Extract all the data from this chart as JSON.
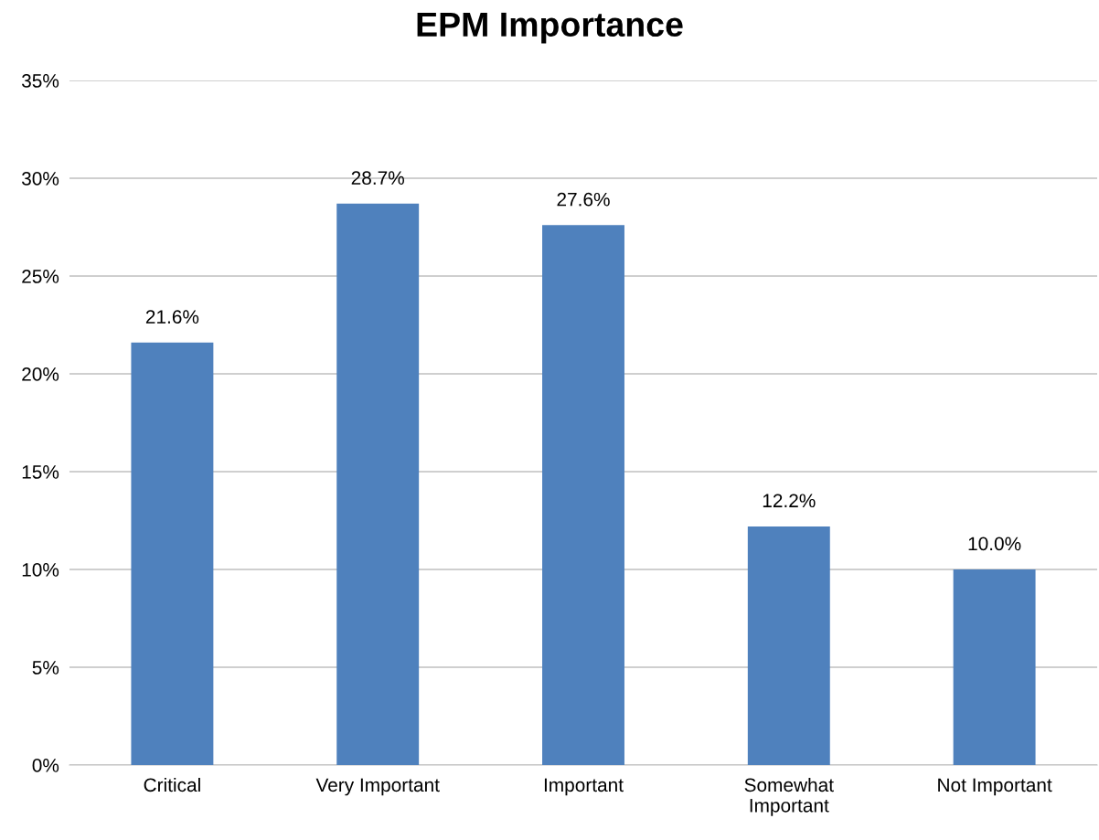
{
  "chart_data": {
    "type": "bar",
    "title": "EPM Importance",
    "categories": [
      "Critical",
      "Very Important",
      "Important",
      "Somewhat\nImportant",
      "Not Important"
    ],
    "values": [
      21.6,
      28.7,
      27.6,
      12.2,
      10.0
    ],
    "value_labels": [
      "21.6%",
      "28.7%",
      "27.6%",
      "12.2%",
      "10.0%"
    ],
    "color": "#4f81bd",
    "ylim": [
      0,
      35
    ],
    "yticks": [
      {
        "value": 0,
        "label": "0%"
      },
      {
        "value": 5,
        "label": "5%"
      },
      {
        "value": 10,
        "label": "10%"
      },
      {
        "value": 15,
        "label": "15%"
      },
      {
        "value": 20,
        "label": "20%"
      },
      {
        "value": 25,
        "label": "25%"
      },
      {
        "value": 30,
        "label": "30%"
      },
      {
        "value": 35,
        "label": "35%"
      }
    ],
    "grid": "y"
  }
}
